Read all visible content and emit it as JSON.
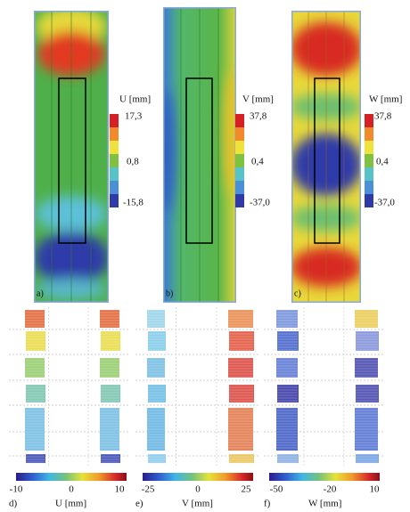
{
  "top_panels": [
    {
      "label": "a)",
      "colorbar_title": "U [mm]",
      "colorbar_ticks": [
        "17,3",
        "0,8",
        "-15,8"
      ]
    },
    {
      "label": "b)",
      "colorbar_title": "V [mm]",
      "colorbar_ticks": [
        "37,8",
        "0,4",
        "-37,0"
      ]
    },
    {
      "label": "c)",
      "colorbar_title": "W [mm]",
      "colorbar_ticks": [
        "37,8",
        "0,4",
        "-37,0"
      ]
    }
  ],
  "bottom_panels": [
    {
      "label": "d)",
      "axis_label": "U [mm]",
      "colorbar_ticks": [
        -10,
        0,
        10
      ]
    },
    {
      "label": "e)",
      "axis_label": "V [mm]",
      "colorbar_ticks": [
        -25,
        0,
        25
      ]
    },
    {
      "label": "f)",
      "axis_label": "W [mm]",
      "colorbar_ticks": [
        -50,
        -20,
        10
      ]
    }
  ]
}
